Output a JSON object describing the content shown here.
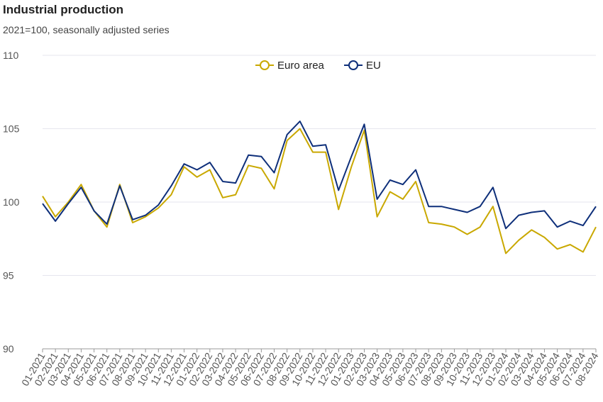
{
  "header": {
    "title": "Industrial production",
    "subtitle": "2021=100, seasonally adjusted series"
  },
  "legend": {
    "placement": "top-center",
    "items": [
      {
        "label": "Euro area",
        "color": "#c9a800"
      },
      {
        "label": "EU",
        "color": "#0e2f7a"
      }
    ]
  },
  "chart_data": {
    "type": "line",
    "title": "Industrial production",
    "subtitle": "2021=100, seasonally adjusted series",
    "xlabel": "",
    "ylabel": "",
    "ylim": [
      90,
      110
    ],
    "yticks": [
      90,
      95,
      100,
      105,
      110
    ],
    "grid": true,
    "legend_placement": "top-center",
    "x": [
      "01-2021",
      "02-2021",
      "03-2021",
      "04-2021",
      "05-2021",
      "06-2021",
      "07-2021",
      "08-2021",
      "09-2021",
      "10-2021",
      "11-2021",
      "12-2021",
      "01-2022",
      "02-2022",
      "03-2022",
      "04-2022",
      "05-2022",
      "06-2022",
      "07-2022",
      "08-2022",
      "09-2022",
      "10-2022",
      "11-2022",
      "12-2022",
      "01-2023",
      "02-2023",
      "03-2023",
      "04-2023",
      "05-2023",
      "06-2023",
      "07-2023",
      "08-2023",
      "09-2023",
      "10-2023",
      "11-2023",
      "12-2023",
      "01-2024",
      "02-2024",
      "03-2024",
      "04-2024",
      "05-2024",
      "06-2024",
      "07-2024",
      "08-2024"
    ],
    "series": [
      {
        "name": "Euro area",
        "color": "#c9a800",
        "values": [
          100.4,
          99.0,
          100.0,
          101.2,
          99.4,
          98.3,
          101.2,
          98.6,
          99.0,
          99.6,
          100.5,
          102.4,
          101.7,
          102.2,
          100.3,
          100.5,
          102.5,
          102.3,
          100.9,
          104.2,
          105.0,
          103.4,
          103.4,
          99.5,
          102.4,
          104.9,
          99.0,
          100.7,
          100.2,
          101.4,
          98.6,
          98.5,
          98.3,
          97.8,
          98.3,
          99.7,
          96.5,
          97.4,
          98.1,
          97.6,
          96.8,
          97.1,
          96.6,
          98.3
        ]
      },
      {
        "name": "EU",
        "color": "#0e2f7a",
        "values": [
          99.9,
          98.7,
          99.9,
          101.0,
          99.4,
          98.5,
          101.1,
          98.8,
          99.1,
          99.8,
          101.1,
          102.6,
          102.2,
          102.7,
          101.4,
          101.3,
          103.2,
          103.1,
          102.0,
          104.6,
          105.5,
          103.8,
          103.9,
          100.8,
          103.1,
          105.3,
          100.2,
          101.5,
          101.2,
          102.2,
          99.7,
          99.7,
          99.5,
          99.3,
          99.7,
          101.0,
          98.2,
          99.1,
          99.3,
          99.4,
          98.3,
          98.7,
          98.4,
          99.7
        ]
      }
    ]
  }
}
